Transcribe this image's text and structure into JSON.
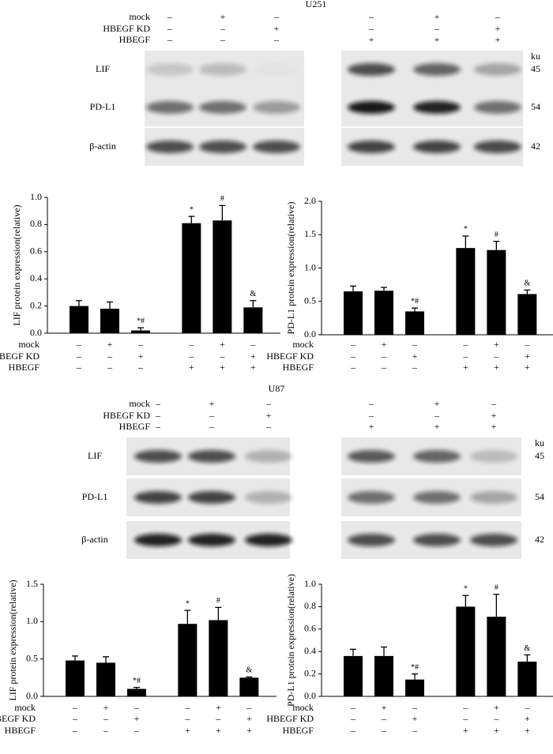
{
  "sections": [
    {
      "title": "U251",
      "conditions": [
        {
          "name": "mock",
          "signs": [
            "–",
            "+",
            "–",
            "–",
            "+",
            "–"
          ]
        },
        {
          "name": "HBEGF KD",
          "signs": [
            "–",
            "–",
            "+",
            "–",
            "–",
            "+"
          ]
        },
        {
          "name": "HBEGF",
          "signs": [
            "–",
            "–",
            "–",
            "+",
            "+",
            "+"
          ]
        }
      ],
      "rows": [
        "LIF",
        "PD-L1",
        "β-actin"
      ],
      "unit": "ku",
      "weights": [
        45,
        54,
        42
      ]
    },
    {
      "title": "U87",
      "conditions": [
        {
          "name": "mock",
          "signs": [
            "–",
            "+",
            "–",
            "–",
            "+",
            "–"
          ]
        },
        {
          "name": "HBEGF KD",
          "signs": [
            "–",
            "–",
            "+",
            "–",
            "–",
            "+"
          ]
        },
        {
          "name": "HBEGF",
          "signs": [
            "–",
            "–",
            "–",
            "+",
            "+",
            "+"
          ]
        }
      ],
      "rows": [
        "LIF",
        "PD-L1",
        "β-actin"
      ],
      "unit": "ku",
      "weights": [
        45,
        54,
        42
      ]
    }
  ],
  "chart_data": [
    {
      "type": "bar",
      "ylabel": "LIF protein expression(relative)",
      "color": "#000000",
      "categories": [
        null,
        null,
        null,
        null,
        null,
        null
      ],
      "values": [
        0.2,
        0.18,
        0.02,
        0.81,
        0.83,
        0.19
      ],
      "errors": [
        0.04,
        0.05,
        0.02,
        0.05,
        0.11,
        0.05
      ],
      "annotations": [
        null,
        null,
        "*#",
        "*",
        "#",
        "&"
      ],
      "ylim": [
        0,
        1
      ],
      "yticks": [
        {
          "value": 0,
          "label": "0.0"
        },
        0.2,
        0.4,
        0.6,
        0.8,
        {
          "value": 1,
          "label": "1.0"
        }
      ],
      "conditions": [
        {
          "name": "mock",
          "signs": [
            "–",
            "+",
            "–",
            "–",
            "+",
            "–"
          ]
        },
        {
          "name": "HBEGF KD",
          "signs": [
            "–",
            "–",
            "+",
            "–",
            "–",
            "+"
          ]
        },
        {
          "name": "HBEGF",
          "signs": [
            "–",
            "–",
            "–",
            "+",
            "+",
            "+"
          ]
        }
      ]
    },
    {
      "type": "bar",
      "ylabel": "PD-L1 protein expression(relative)",
      "color": "#000000",
      "categories": [
        null,
        null,
        null,
        null,
        null,
        null
      ],
      "values": [
        0.65,
        0.66,
        0.35,
        1.3,
        1.27,
        0.61
      ],
      "errors": [
        0.08,
        0.05,
        0.05,
        0.18,
        0.13,
        0.06
      ],
      "annotations": [
        null,
        null,
        "*#",
        "*",
        "#",
        "&"
      ],
      "ylim": [
        0,
        2
      ],
      "yticks": [
        {
          "value": 0,
          "label": "0.0"
        },
        0.5,
        {
          "value": 1,
          "label": "1.0"
        },
        1.5,
        {
          "value": 2,
          "label": "2.0"
        }
      ],
      "conditions": [
        {
          "name": "mock",
          "signs": [
            "–",
            "+",
            "–",
            "–",
            "+",
            "–"
          ]
        },
        {
          "name": "HBEGF KD",
          "signs": [
            "–",
            "–",
            "+",
            "–",
            "–",
            "+"
          ]
        },
        {
          "name": "HBEGF",
          "signs": [
            "–",
            "–",
            "–",
            "+",
            "+",
            "+"
          ]
        }
      ]
    },
    {
      "type": "bar",
      "ylabel": "LIF protein expression(relative)",
      "color": "#000000",
      "categories": [
        null,
        null,
        null,
        null,
        null,
        null
      ],
      "values": [
        0.48,
        0.45,
        0.1,
        0.97,
        1.02,
        0.25
      ],
      "errors": [
        0.06,
        0.08,
        0.02,
        0.18,
        0.17,
        0.01
      ],
      "annotations": [
        null,
        null,
        "*#",
        "*",
        "#",
        "&"
      ],
      "ylim": [
        0,
        1.5
      ],
      "yticks": [
        {
          "value": 0,
          "label": "0.0"
        },
        0.5,
        {
          "value": 1,
          "label": "1.0"
        },
        1.5
      ],
      "conditions": [
        {
          "name": "mock",
          "signs": [
            "–",
            "+",
            "–",
            "–",
            "+",
            "–"
          ]
        },
        {
          "name": "HBEGF KD",
          "signs": [
            "–",
            "–",
            "+",
            "–",
            "–",
            "+"
          ]
        },
        {
          "name": "HBEGF",
          "signs": [
            "–",
            "–",
            "–",
            "+",
            "+",
            "+"
          ]
        }
      ]
    },
    {
      "type": "bar",
      "ylabel": "PD-L1 protein expression(relative)",
      "color": "#000000",
      "categories": [
        null,
        null,
        null,
        null,
        null,
        null
      ],
      "values": [
        0.36,
        0.36,
        0.15,
        0.8,
        0.71,
        0.31
      ],
      "errors": [
        0.06,
        0.08,
        0.05,
        0.1,
        0.2,
        0.06
      ],
      "annotations": [
        null,
        null,
        "*#",
        "*",
        "#",
        "&"
      ],
      "ylim": [
        0,
        1
      ],
      "yticks": [
        {
          "value": 0,
          "label": "0.0"
        },
        0.2,
        0.4,
        0.6,
        0.8,
        {
          "value": 1,
          "label": "1.0"
        }
      ],
      "conditions": [
        {
          "name": "mock",
          "signs": [
            "–",
            "+",
            "–",
            "–",
            "+",
            "–"
          ]
        },
        {
          "name": "HBEGF KD",
          "signs": [
            "–",
            "–",
            "+",
            "–",
            "–",
            "+"
          ]
        },
        {
          "name": "HBEGF",
          "signs": [
            "–",
            "–",
            "–",
            "+",
            "+",
            "+"
          ]
        }
      ]
    }
  ]
}
